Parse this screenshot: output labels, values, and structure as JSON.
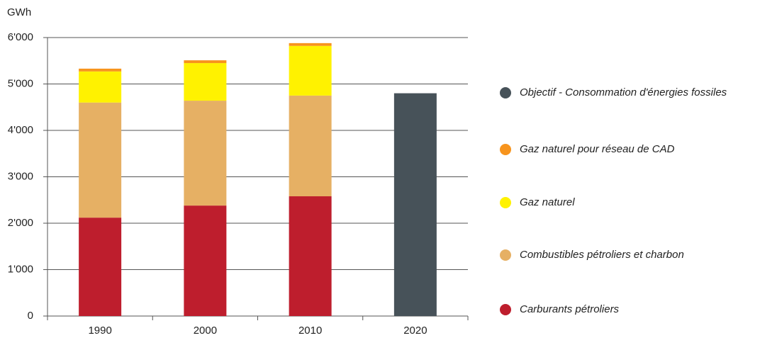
{
  "chart_data": {
    "type": "bar",
    "stacked": true,
    "ylabel": "GWh",
    "categories": [
      "1990",
      "2000",
      "2010",
      "2020"
    ],
    "series": [
      {
        "name": "Carburants pétroliers",
        "color": "#be1e2d",
        "values": [
          2120,
          2380,
          2580,
          null
        ]
      },
      {
        "name": "Combustibles pétroliers et charbon",
        "color": "#e6b064",
        "values": [
          2480,
          2260,
          2170,
          null
        ]
      },
      {
        "name": "Gaz naturel",
        "color": "#fff200",
        "values": [
          670,
          810,
          1070,
          null
        ]
      },
      {
        "name": "Gaz naturel pour réseau de CAD",
        "color": "#f7941d",
        "values": [
          60,
          60,
          60,
          null
        ]
      },
      {
        "name": "Objectif - Consommation d'énergies fossiles",
        "color": "#475259",
        "values": [
          null,
          null,
          null,
          4800
        ]
      }
    ],
    "ylim": [
      0,
      6000
    ],
    "yticks": [
      0,
      {
        "value": 1000,
        "label": "1'000"
      },
      {
        "value": 2000,
        "label": "2'000"
      },
      {
        "value": 3000,
        "label": "3'000"
      },
      {
        "value": 4000,
        "label": "4'000"
      },
      {
        "value": 5000,
        "label": "5'000"
      },
      {
        "value": 6000,
        "label": "6'000"
      }
    ],
    "grid": true,
    "legend": "right"
  }
}
